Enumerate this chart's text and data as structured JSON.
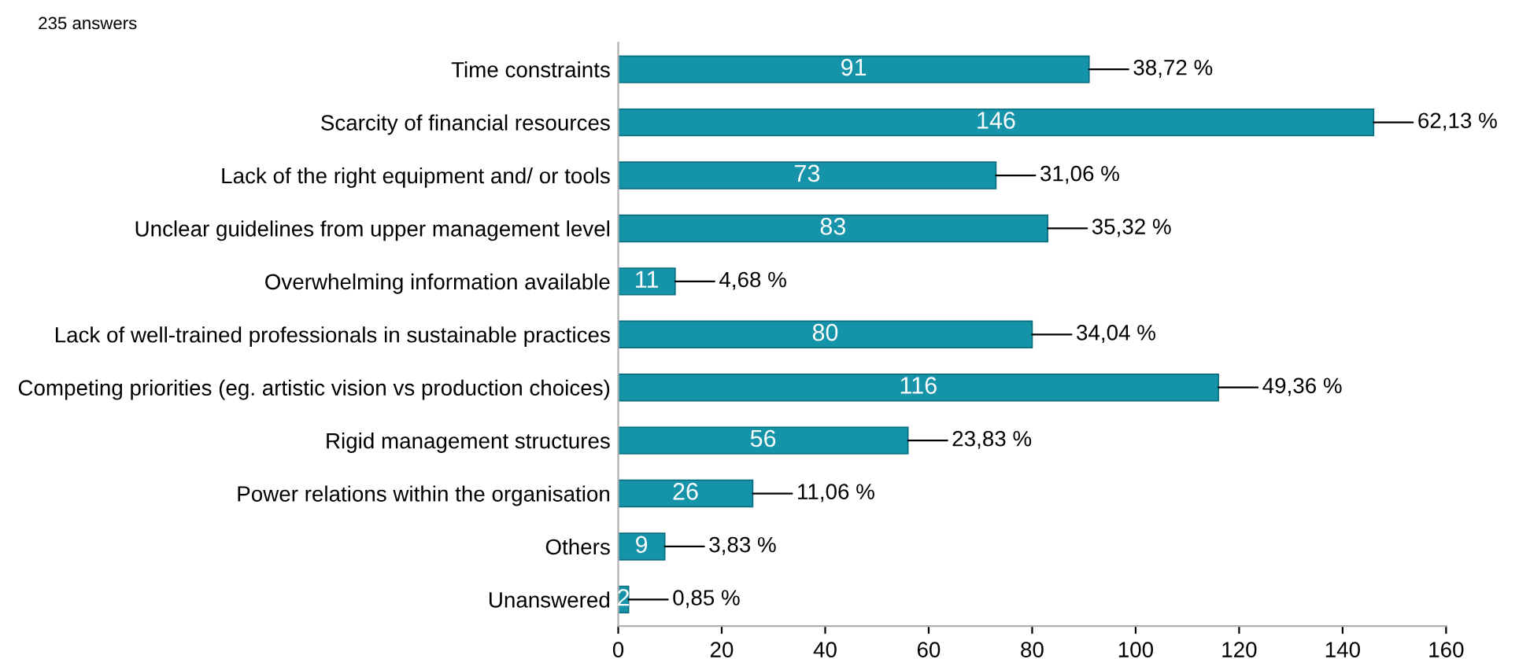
{
  "chart_data": {
    "type": "bar",
    "orientation": "horizontal",
    "title": "235 answers",
    "categories": [
      "Time constraints",
      "Scarcity of financial resources",
      "Lack of the right equipment and/ or tools",
      "Unclear guidelines from upper management level",
      "Overwhelming information available",
      "Lack of well-trained professionals in sustainable practices",
      "Competing priorities (eg. artistic vision vs production choices)",
      "Rigid management structures",
      "Power relations within the organisation",
      "Others",
      "Unanswered"
    ],
    "values": [
      91,
      146,
      73,
      83,
      11,
      80,
      116,
      56,
      26,
      9,
      2
    ],
    "color": "#1493a9",
    "data_labels": true,
    "annotations": [
      {
        "text": "38,72 %",
        "x": 91,
        "y": "Time constraints"
      },
      {
        "text": "62,13 %",
        "x": 146,
        "y": "Scarcity of financial resources"
      },
      {
        "text": "31,06 %",
        "x": 73,
        "y": "Lack of the right equipment and/ or tools"
      },
      {
        "text": "35,32 %",
        "x": 83,
        "y": "Unclear guidelines from upper management level"
      },
      {
        "text": "4,68 %",
        "x": 11,
        "y": "Overwhelming information available"
      },
      {
        "text": "34,04 %",
        "x": 80,
        "y": "Lack of well-trained professionals in sustainable practices"
      },
      {
        "text": "49,36 %",
        "x": 116,
        "y": "Competing priorities (eg. artistic vision vs production choices)"
      },
      {
        "text": "23,83 %",
        "x": 56,
        "y": "Rigid management structures"
      },
      {
        "text": "11,06 %",
        "x": 26,
        "y": "Power relations within the organisation"
      },
      {
        "text": "3,83 %",
        "x": 9,
        "y": "Others"
      },
      {
        "text": "0,85 %",
        "x": 2,
        "y": "Unanswered"
      }
    ],
    "xlim": [
      0,
      160
    ],
    "xticks": [
      0,
      20,
      40,
      60,
      80,
      100,
      120,
      140,
      160
    ],
    "grid": false,
    "legend": false
  }
}
